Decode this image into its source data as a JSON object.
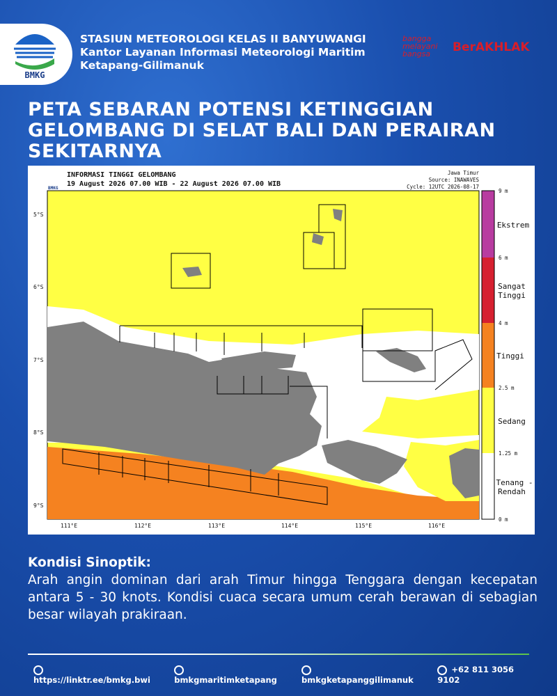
{
  "header": {
    "logo_text": "BMKG",
    "lines": [
      "STASIUN METEOROLOGI KELAS II BANYUWANGI",
      "Kantor Layanan Informasi Meteorologi Maritim",
      "Ketapang-Gilimanuk"
    ],
    "badge_1": [
      "bangga",
      "melayani",
      "bangsa"
    ],
    "badge_2": "BerAKHLAK"
  },
  "title": [
    "PETA SEBARAN POTENSI KETINGGIAN",
    "GELOMBANG DI SELAT BALI DAN PERAIRAN",
    "SEKITARNYA"
  ],
  "map": {
    "heading": "INFORMASI TINGGI GELOMBANG",
    "period": "19 August 2026 07.00 WIB - 22 August 2026 07.00 WIB",
    "region": "Jawa Timur",
    "source": "Source: INAWAVES",
    "cycle": "Cycle: 12UTC 2026-08-17",
    "logo_text": "BMKG",
    "lat_labels": [
      "5°S",
      "6°S",
      "7°S",
      "8°S",
      "9°S"
    ],
    "lon_labels": [
      "111°E",
      "112°E",
      "113°E",
      "114°E",
      "115°E",
      "116°E"
    ],
    "scale_labels": [
      "9 m",
      "6 m",
      "4 m",
      "2.5 m",
      "1.25 m",
      "0 m"
    ],
    "categories": [
      [
        "Ekstrem"
      ],
      [
        "Sangat",
        "Tinggi"
      ],
      [
        "Tinggi"
      ],
      [
        "Sedang"
      ],
      [
        "Tenang -",
        "Rendah"
      ]
    ]
  },
  "synoptic": {
    "heading": "Kondisi Sinoptik:",
    "text": "Arah angin dominan dari arah Timur hingga Tenggara dengan kecepatan antara 5 - 30 knots. Kondisi cuaca secara umum cerah berawan di sebagian besar wilayah prakiraan."
  },
  "footer": [
    "https://linktr.ee/bmkg.bwi",
    "bmkgmaritimketapang",
    "bmkgketapanggilimanuk",
    "+62 811 3056 9102"
  ]
}
